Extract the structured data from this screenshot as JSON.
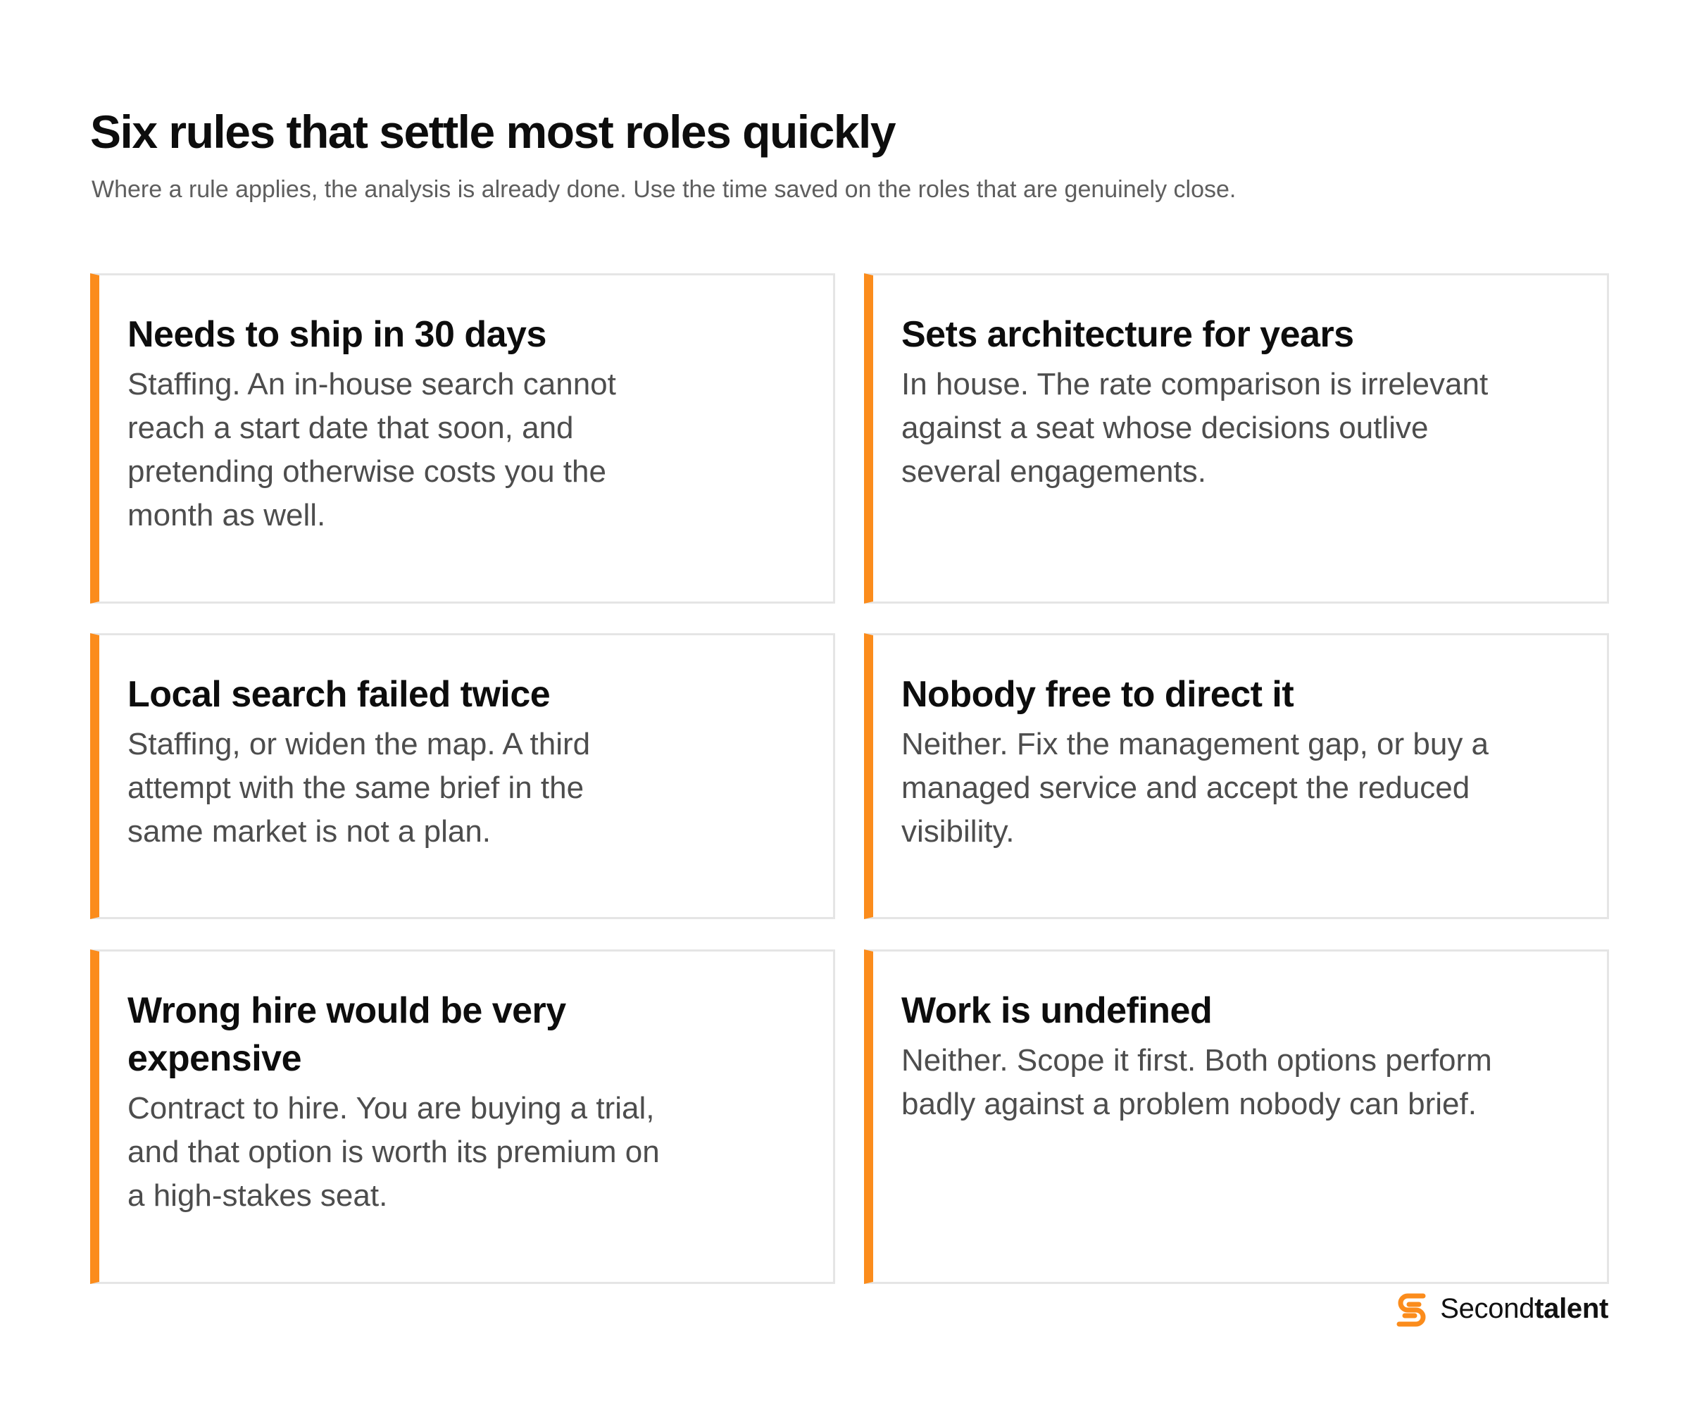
{
  "header": {
    "title": "Six rules that settle most roles quickly",
    "subtitle": "Where a rule applies, the analysis is already done. Use the time saved on the roles that are genuinely close."
  },
  "cards": [
    {
      "title": "Needs to ship in 30 days",
      "body": "Staffing. An in-house search cannot reach a start date that soon, and pretending otherwise costs you the month as well."
    },
    {
      "title": "Sets architecture for years",
      "body": "In house. The rate comparison is irrelevant against a seat whose decisions outlive several engagements."
    },
    {
      "title": "Local search failed twice",
      "body": "Staffing, or widen the map. A third attempt with the same brief in the same market is not a plan."
    },
    {
      "title": "Nobody free to direct it",
      "body": "Neither. Fix the management gap, or buy a managed service and accept the reduced visibility."
    },
    {
      "title": "Wrong hire would be very expensive",
      "body": "Contract to hire. You are buying a trial, and that option is worth its premium on a high-stakes seat."
    },
    {
      "title": "Work is undefined",
      "body": "Neither. Scope it first. Both options perform badly against a problem nobody can brief."
    }
  ],
  "brand": {
    "name_light": "Second",
    "name_bold": "talent",
    "logo_icon": "secondtalent-s-logo-icon",
    "accent_color": "#fb8c1c"
  },
  "colors": {
    "card_accent": "#fb8c1c",
    "card_border": "#e5e5e5",
    "title_text": "#0d0d0d",
    "body_text": "#4d4d4d",
    "subtitle_text": "#5e5e5e"
  }
}
